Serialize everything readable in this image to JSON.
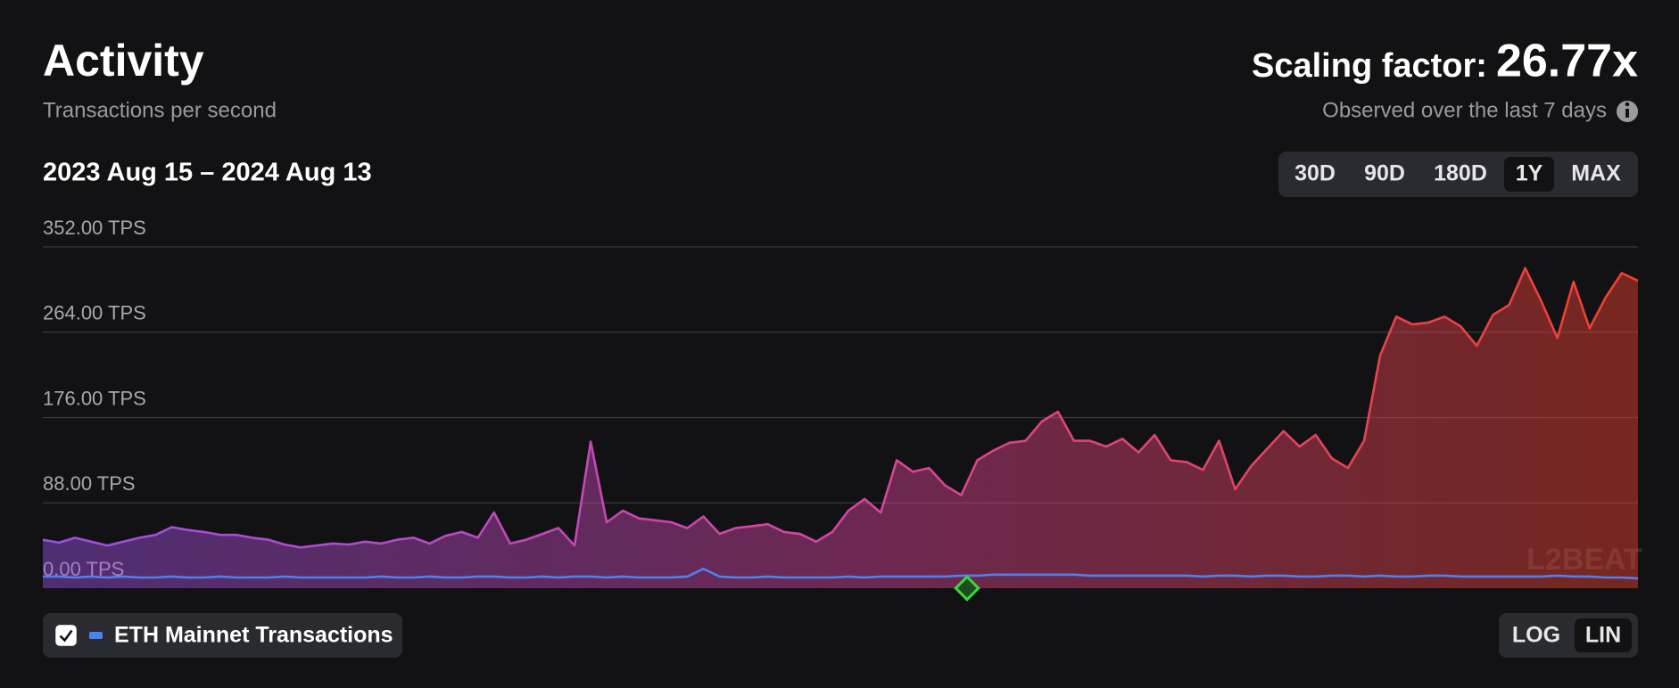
{
  "header": {
    "title": "Activity",
    "subtitle": "Transactions per second",
    "scaling_label": "Scaling factor:",
    "scaling_value": "26.77x",
    "observed": "Observed over the last 7 days",
    "date_range": "2023 Aug 15 – 2024 Aug 13"
  },
  "range_buttons": {
    "options": [
      "30D",
      "90D",
      "180D",
      "1Y",
      "MAX"
    ],
    "selected": "1Y"
  },
  "scale_buttons": {
    "options": [
      "LOG",
      "LIN"
    ],
    "selected": "LIN"
  },
  "watermark": "L2BEAT",
  "chart_data": {
    "type": "area",
    "ylim": [
      0,
      352
    ],
    "log_scale": false,
    "grid": true,
    "yticks": [
      {
        "value": 0,
        "label": "0.00 TPS"
      },
      {
        "value": 88,
        "label": "88.00 TPS"
      },
      {
        "value": 176,
        "label": "176.00 TPS"
      },
      {
        "value": 264,
        "label": "264.00 TPS"
      },
      {
        "value": 352,
        "label": "352.00 TPS"
      }
    ],
    "series": [
      {
        "colors": [
          "#9a4fe6",
          "#d8449f",
          "#f0402c"
        ],
        "values": [
          50,
          47,
          52,
          48,
          44,
          48,
          52,
          55,
          63,
          60,
          58,
          55,
          55,
          52,
          50,
          45,
          42,
          44,
          46,
          45,
          48,
          46,
          50,
          52,
          46,
          54,
          58,
          52,
          78,
          46,
          50,
          56,
          62,
          44,
          151,
          68,
          80,
          72,
          70,
          68,
          62,
          74,
          56,
          62,
          64,
          66,
          58,
          56,
          48,
          58,
          80,
          92,
          78,
          132,
          120,
          124,
          106,
          96,
          132,
          142,
          150,
          152,
          172,
          182,
          152,
          152,
          146,
          154,
          140,
          158,
          132,
          130,
          122,
          152,
          102,
          126,
          144,
          162,
          146,
          158,
          134,
          124,
          152,
          240,
          280,
          272,
          274,
          280,
          270,
          250,
          282,
          292,
          330,
          296,
          258,
          316,
          268,
          300,
          325,
          317
        ]
      },
      {
        "name": "ETH Mainnet Transactions",
        "color": "#4f80f0",
        "visible": true,
        "values": [
          12,
          12,
          11,
          12,
          11,
          12,
          11,
          11,
          12,
          11,
          11,
          12,
          11,
          11,
          11,
          12,
          11,
          11,
          11,
          11,
          11,
          12,
          11,
          11,
          12,
          11,
          11,
          12,
          12,
          11,
          11,
          12,
          11,
          12,
          12,
          11,
          12,
          11,
          11,
          11,
          12,
          20,
          12,
          11,
          11,
          12,
          11,
          11,
          11,
          11,
          12,
          11,
          12,
          12,
          12,
          12,
          12,
          13,
          13,
          14,
          14,
          14,
          14,
          14,
          14,
          13,
          13,
          13,
          13,
          13,
          13,
          13,
          12,
          13,
          13,
          12,
          13,
          13,
          12,
          12,
          13,
          13,
          12,
          13,
          12,
          12,
          13,
          13,
          12,
          12,
          12,
          12,
          12,
          12,
          13,
          12,
          12,
          11,
          11,
          10
        ]
      }
    ]
  }
}
